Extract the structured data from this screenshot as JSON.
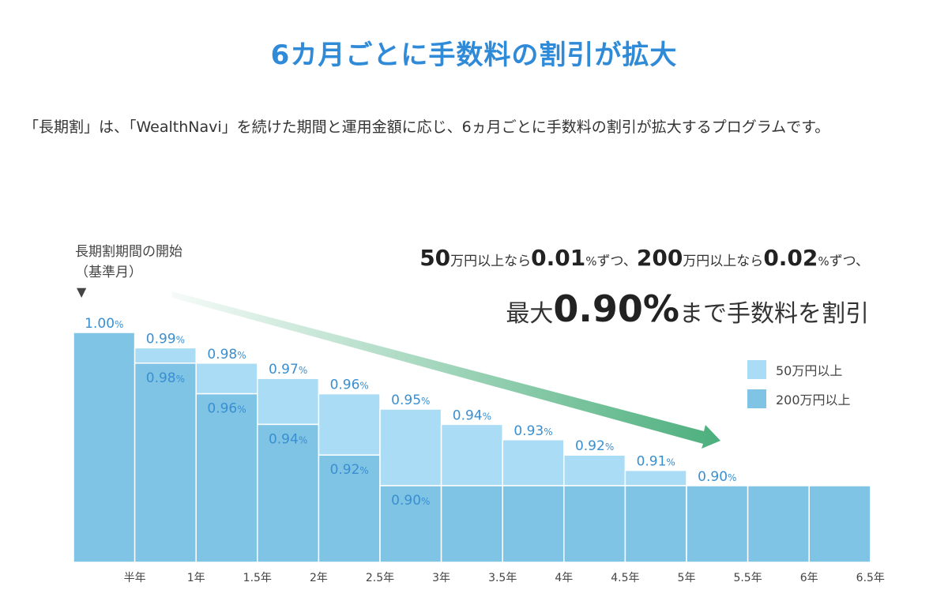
{
  "title": "6カ月ごとに手数料の割引が拡大",
  "intro": "「長期割」は、「WealthNavi」を続けた期間と運用金額に応じ、6ヵ月ごとに手数料の割引が拡大するプログラムです。",
  "start_label_line1": "長期割期間の開始",
  "start_label_line2": "（基準月）",
  "start_marker": "▼",
  "headline": {
    "part1_num": "50",
    "part1_unit": "万円以上なら",
    "part1_rate": "0.01",
    "part1_pct": "%",
    "part1_tail": "ずつ、",
    "part2_num": "200",
    "part2_unit": "万円以上なら",
    "part2_rate": "0.02",
    "part2_pct": "%",
    "part2_tail": "ずつ、",
    "line2_prefix": "最大",
    "line2_value": "0.90%",
    "line2_suffix": "まで手数料を割引"
  },
  "legend": [
    {
      "label": "50万円以上",
      "color": "#aadcf5"
    },
    {
      "label": "200万円以上",
      "color": "#7fc3e5"
    }
  ],
  "chart_data": {
    "type": "bar",
    "x_ticks": [
      "半年",
      "1年",
      "1.5年",
      "2年",
      "2.5年",
      "3年",
      "3.5年",
      "4年",
      "4.5年",
      "5年",
      "5.5年",
      "6年",
      "6.5年"
    ],
    "series": [
      {
        "name": "50万円以上",
        "color": "#aadcf5",
        "values": [
          1.0,
          0.99,
          0.98,
          0.97,
          0.96,
          0.95,
          0.94,
          0.93,
          0.92,
          0.91,
          0.9,
          0.9,
          0.9
        ]
      },
      {
        "name": "200万円以上",
        "color": "#7fc3e5",
        "values": [
          1.0,
          0.98,
          0.96,
          0.94,
          0.92,
          0.9,
          0.9,
          0.9,
          0.9,
          0.9,
          0.9,
          0.9,
          0.9
        ]
      }
    ],
    "top_labels": [
      "1.00",
      "0.99",
      "0.98",
      "0.97",
      "0.96",
      "0.95",
      "0.94",
      "0.93",
      "0.92",
      "0.91",
      "0.90"
    ],
    "lower_labels": [
      "0.98",
      "0.96",
      "0.94",
      "0.92",
      "0.90"
    ],
    "label_unit": "%",
    "ylim": [
      0.85,
      1.0
    ],
    "trend_arrow_color": "#4caf7d"
  }
}
